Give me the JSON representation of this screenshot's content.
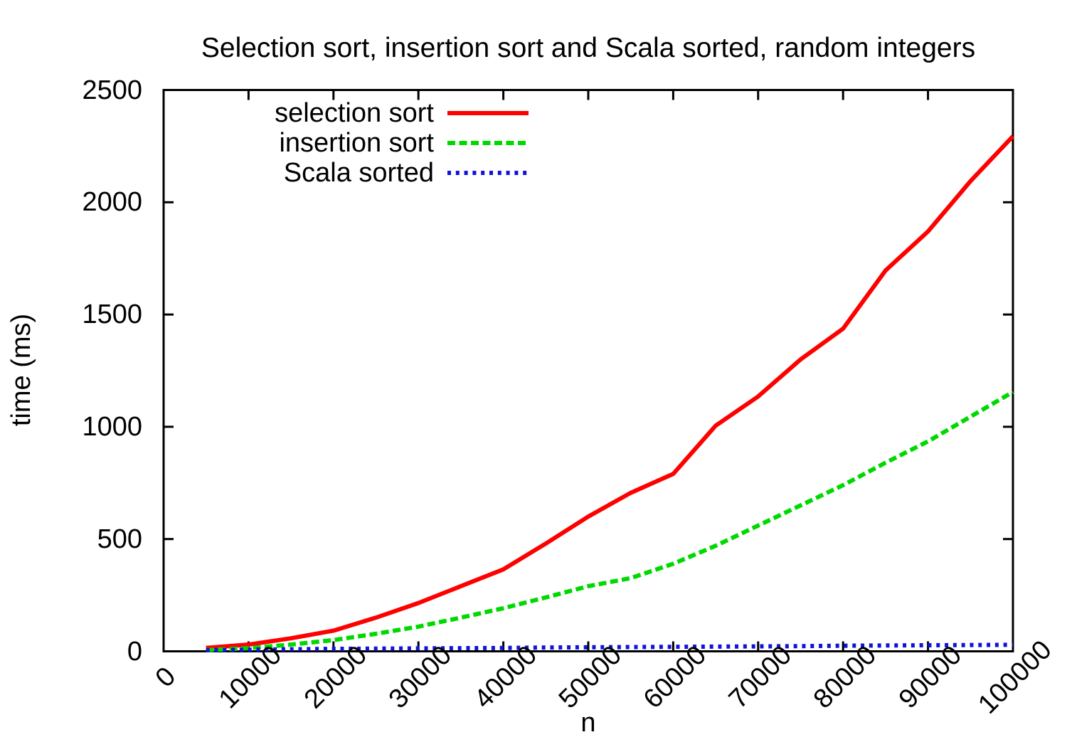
{
  "chart_data": {
    "type": "line",
    "title": "Selection sort, insertion sort and Scala sorted, random integers",
    "xlabel": "n",
    "ylabel": "time (ms)",
    "xlim": [
      0,
      100000
    ],
    "ylim": [
      0,
      2500
    ],
    "x_ticks": [
      0,
      10000,
      20000,
      30000,
      40000,
      50000,
      60000,
      70000,
      80000,
      90000,
      100000
    ],
    "y_ticks": [
      0,
      500,
      1000,
      1500,
      2000,
      2500
    ],
    "grid": false,
    "legend_position": "top-left-inside",
    "background_color": "#ffffff",
    "axis_color": "#000000",
    "x": [
      5000,
      10000,
      15000,
      20000,
      25000,
      30000,
      35000,
      40000,
      45000,
      50000,
      55000,
      60000,
      65000,
      70000,
      75000,
      80000,
      85000,
      90000,
      95000,
      100000
    ],
    "series": [
      {
        "name": "selection sort",
        "color": "#ff0000",
        "style": "solid",
        "values": [
          15,
          30,
          58,
          92,
          150,
          215,
          290,
          365,
          480,
          600,
          706,
          790,
          1005,
          1135,
          1300,
          1437,
          1696,
          1870,
          2094,
          2294
        ]
      },
      {
        "name": "insertion sort",
        "color": "#00d900",
        "style": "dashed",
        "values": [
          5,
          14,
          30,
          50,
          78,
          110,
          150,
          192,
          240,
          290,
          326,
          390,
          470,
          560,
          650,
          740,
          840,
          935,
          1045,
          1155
        ]
      },
      {
        "name": "Scala sorted",
        "color": "#1212d9",
        "style": "dotted",
        "values": [
          5,
          7,
          9,
          11,
          12,
          13,
          14,
          15,
          17,
          18,
          19,
          20,
          21,
          22,
          23,
          25,
          26,
          27,
          28,
          29
        ]
      }
    ]
  }
}
